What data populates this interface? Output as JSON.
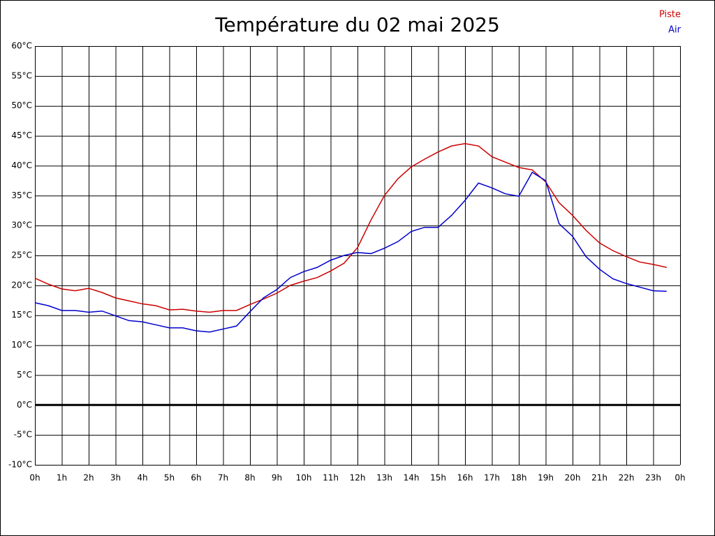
{
  "chart_data": {
    "type": "line",
    "title": "Température du 02 mai 2025",
    "x": [
      0,
      0.5,
      1,
      1.5,
      2,
      2.5,
      3,
      3.5,
      4,
      4.5,
      5,
      5.5,
      6,
      6.5,
      7,
      7.5,
      8,
      8.5,
      9,
      9.5,
      10,
      10.5,
      11,
      11.5,
      12,
      12.5,
      13,
      13.5,
      14,
      14.5,
      15,
      15.5,
      16,
      16.5,
      17,
      17.5,
      18,
      18.5,
      19,
      19.5,
      20,
      20.5,
      21,
      21.5,
      22,
      22.5,
      23,
      23.5
    ],
    "series": [
      {
        "name": "Piste",
        "color": "#cc0000",
        "values": [
          21.2,
          20.2,
          19.4,
          19.1,
          19.5,
          18.8,
          17.9,
          17.4,
          16.9,
          16.6,
          15.9,
          16.0,
          15.7,
          15.5,
          15.8,
          15.8,
          16.8,
          17.7,
          18.7,
          20.0,
          20.7,
          21.3,
          22.4,
          23.7,
          26.3,
          30.9,
          35.0,
          37.8,
          39.8,
          41.1,
          42.3,
          43.3,
          43.7,
          43.3,
          41.5,
          40.6,
          39.7,
          39.3,
          37.3,
          33.8,
          31.7,
          29.2,
          27.1,
          25.8,
          24.8,
          23.9,
          23.5,
          23.0
        ]
      },
      {
        "name": "Air",
        "color": "#0000cc",
        "values": [
          17.1,
          16.6,
          15.8,
          15.8,
          15.5,
          15.7,
          14.9,
          14.1,
          13.9,
          13.4,
          12.9,
          12.9,
          12.4,
          12.2,
          12.7,
          13.2,
          15.6,
          17.9,
          19.3,
          21.3,
          22.3,
          23.0,
          24.2,
          25.0,
          25.5,
          25.3,
          26.2,
          27.3,
          29.0,
          29.7,
          29.7,
          31.7,
          34.2,
          37.1,
          36.3,
          35.3,
          34.9,
          38.9,
          37.5,
          30.3,
          28.2,
          24.8,
          22.7,
          21.1,
          20.3,
          19.7,
          19.1,
          19.0
        ]
      }
    ],
    "xlim": [
      0,
      24
    ],
    "xticks": [
      {
        "value": 0,
        "label": "0h"
      },
      {
        "value": 1,
        "label": "1h"
      },
      {
        "value": 2,
        "label": "2h"
      },
      {
        "value": 3,
        "label": "3h"
      },
      {
        "value": 4,
        "label": "4h"
      },
      {
        "value": 5,
        "label": "5h"
      },
      {
        "value": 6,
        "label": "6h"
      },
      {
        "value": 7,
        "label": "7h"
      },
      {
        "value": 8,
        "label": "8h"
      },
      {
        "value": 9,
        "label": "9h"
      },
      {
        "value": 10,
        "label": "10h"
      },
      {
        "value": 11,
        "label": "11h"
      },
      {
        "value": 12,
        "label": "12h"
      },
      {
        "value": 13,
        "label": "13h"
      },
      {
        "value": 14,
        "label": "14h"
      },
      {
        "value": 15,
        "label": "15h"
      },
      {
        "value": 16,
        "label": "16h"
      },
      {
        "value": 17,
        "label": "17h"
      },
      {
        "value": 18,
        "label": "18h"
      },
      {
        "value": 19,
        "label": "19h"
      },
      {
        "value": 20,
        "label": "20h"
      },
      {
        "value": 21,
        "label": "21h"
      },
      {
        "value": 22,
        "label": "22h"
      },
      {
        "value": 23,
        "label": "23h"
      },
      {
        "value": 24,
        "label": "0h"
      }
    ],
    "ylim": [
      -10,
      60
    ],
    "yticks": [
      {
        "value": -10,
        "label": "-10°C"
      },
      {
        "value": -5,
        "label": "-5°C"
      },
      {
        "value": 0,
        "label": "0°C"
      },
      {
        "value": 5,
        "label": "5°C"
      },
      {
        "value": 10,
        "label": "10°C"
      },
      {
        "value": 15,
        "label": "15°C"
      },
      {
        "value": 20,
        "label": "20°C"
      },
      {
        "value": 25,
        "label": "25°C"
      },
      {
        "value": 30,
        "label": "30°C"
      },
      {
        "value": 35,
        "label": "35°C"
      },
      {
        "value": 40,
        "label": "40°C"
      },
      {
        "value": 45,
        "label": "45°C"
      },
      {
        "value": 50,
        "label": "50°C"
      },
      {
        "value": 55,
        "label": "55°C"
      },
      {
        "value": 60,
        "label": "60°C"
      }
    ],
    "grid": true,
    "zero_line": true,
    "legend": "top-right"
  }
}
